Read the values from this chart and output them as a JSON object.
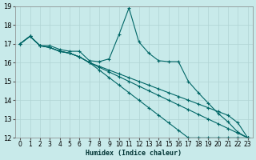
{
  "background_color": "#c8eaea",
  "grid_color": "#b0d4d4",
  "line_color": "#006666",
  "xlabel": "Humidex (Indice chaleur)",
  "xlim": [
    -0.5,
    23.5
  ],
  "ylim": [
    12,
    19
  ],
  "xticks": [
    0,
    1,
    2,
    3,
    4,
    5,
    6,
    7,
    8,
    9,
    10,
    11,
    12,
    13,
    14,
    15,
    16,
    17,
    18,
    19,
    20,
    21,
    22,
    23
  ],
  "yticks": [
    12,
    13,
    14,
    15,
    16,
    17,
    18,
    19
  ],
  "series": {
    "jagged": [
      17.0,
      17.4,
      16.9,
      16.9,
      16.7,
      16.6,
      16.6,
      16.1,
      16.05,
      16.2,
      17.5,
      18.9,
      17.1,
      16.5,
      16.1,
      16.05,
      16.05,
      15.0,
      14.4,
      13.85,
      13.3,
      12.85,
      12.3,
      12.0
    ],
    "line1": [
      17.0,
      17.4,
      16.9,
      16.8,
      16.6,
      16.5,
      16.3,
      16.0,
      15.8,
      15.6,
      15.4,
      15.2,
      15.0,
      14.8,
      14.6,
      14.4,
      14.2,
      14.0,
      13.8,
      13.6,
      13.4,
      13.2,
      12.8,
      12.0
    ],
    "line2": [
      17.0,
      17.4,
      16.9,
      16.8,
      16.6,
      16.5,
      16.3,
      16.0,
      15.75,
      15.5,
      15.25,
      15.0,
      14.75,
      14.5,
      14.25,
      14.0,
      13.75,
      13.5,
      13.25,
      13.0,
      12.75,
      12.5,
      12.25,
      12.0
    ],
    "line3": [
      17.0,
      17.4,
      16.9,
      16.8,
      16.6,
      16.5,
      16.3,
      16.0,
      15.6,
      15.2,
      14.8,
      14.4,
      14.0,
      13.6,
      13.2,
      12.8,
      12.4,
      12.0,
      12.0,
      12.0,
      12.0,
      12.0,
      12.0,
      12.0
    ]
  }
}
